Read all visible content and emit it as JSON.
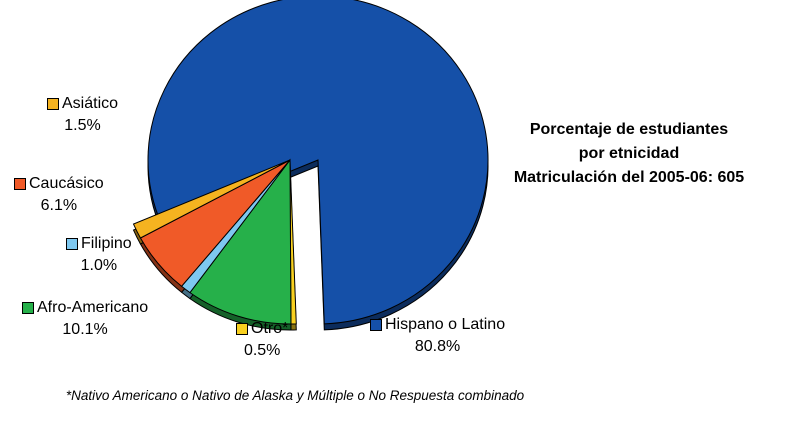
{
  "chart_data": {
    "type": "pie",
    "title_lines": [
      "Porcentaje de estudiantes",
      "por etnicidad",
      "Matriculación del 2005-06: 605"
    ],
    "categories": [
      "Hispano o Latino",
      "Otro*",
      "Afro-Americano",
      "Filipino",
      "Caucásico",
      "Asiático"
    ],
    "values": [
      80.8,
      0.5,
      10.1,
      1.0,
      6.1,
      1.5
    ],
    "value_labels": [
      "80.8%",
      "0.5%",
      "10.1%",
      "1.0%",
      "6.1%",
      "1.5%"
    ],
    "colors": [
      "#1550a8",
      "#f8d020",
      "#26b04a",
      "#7ec8f0",
      "#f05a28",
      "#f5b320"
    ],
    "exploded": true,
    "legend": "labels next to slices",
    "footnote": "*Nativo Americano o Nativo de Alaska y Múltiple o No Respuesta combinado"
  }
}
